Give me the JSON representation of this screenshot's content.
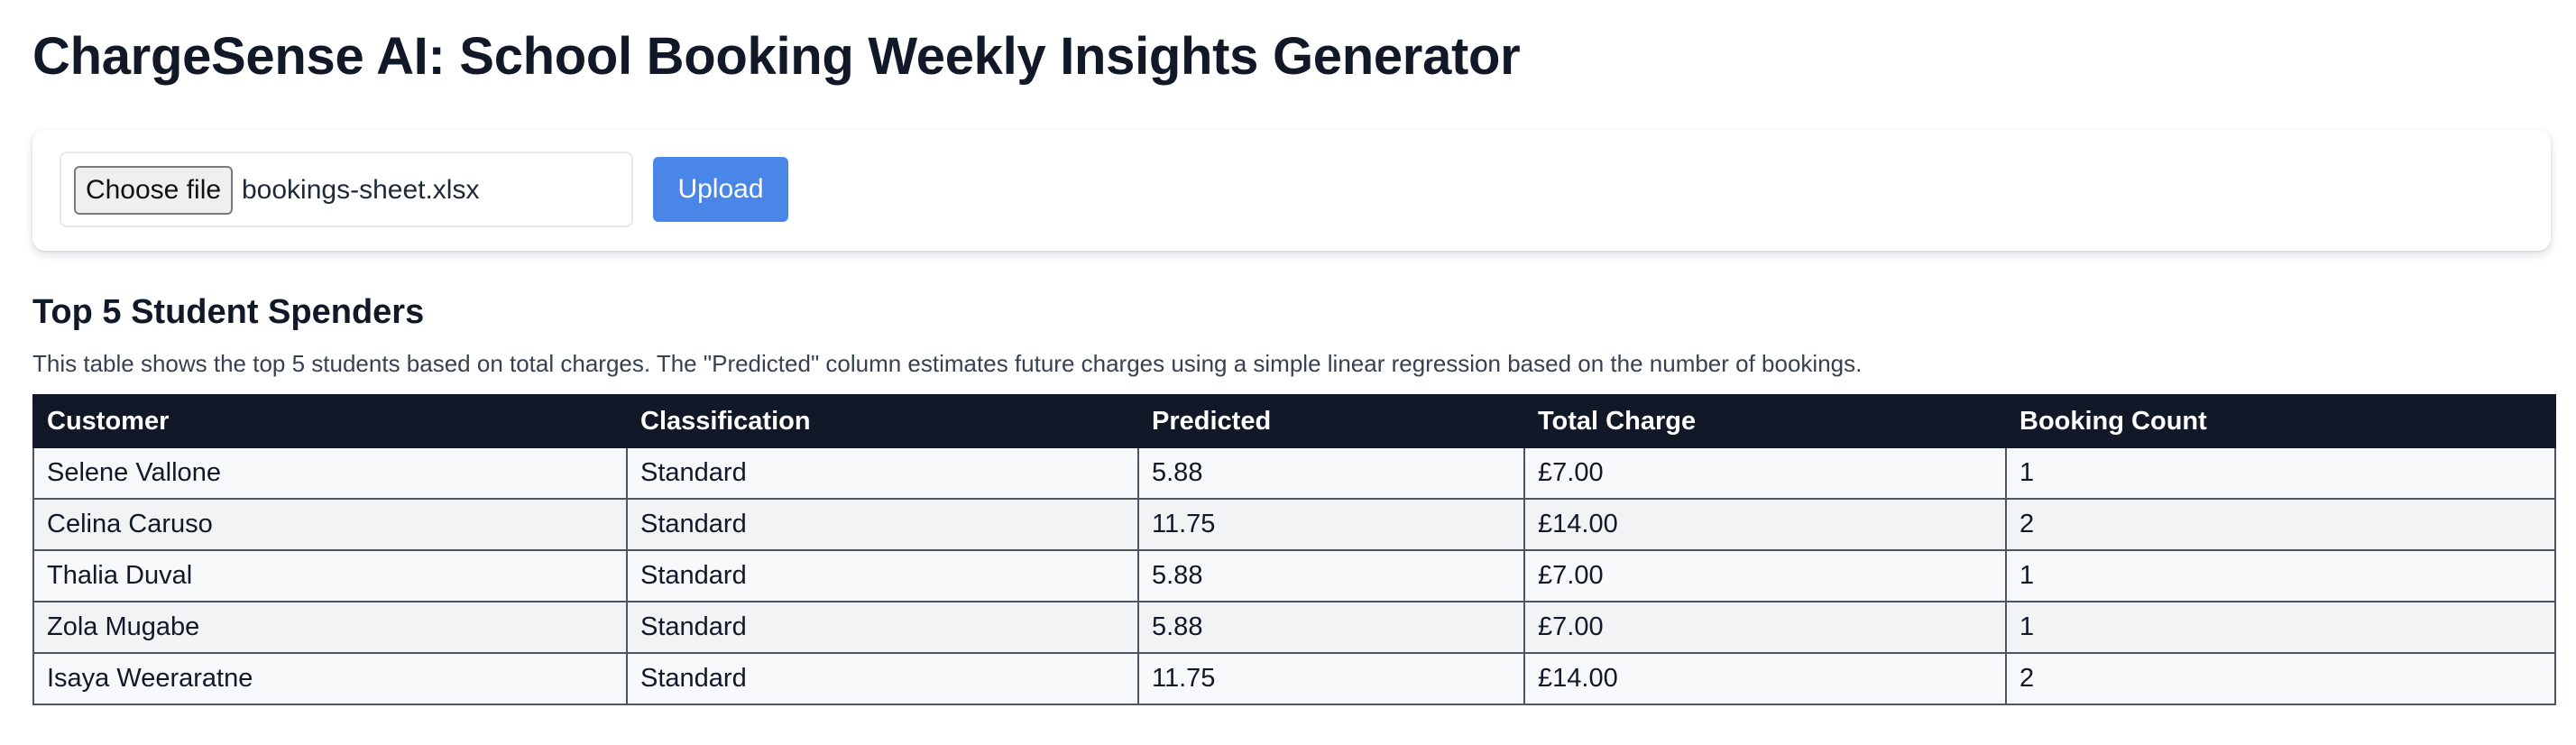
{
  "page_title": "ChargeSense AI: School Booking Weekly Insights Generator",
  "upload": {
    "choose_file_label": "Choose file",
    "file_name": "bookings-sheet.xlsx",
    "upload_label": "Upload",
    "accent_color": "#4a86e8"
  },
  "section": {
    "title": "Top 5 Student Spenders",
    "description": "This table shows the top 5 students based on total charges. The \"Predicted\" column estimates future charges using a simple linear regression based on the number of bookings."
  },
  "table": {
    "columns": [
      "Customer",
      "Classification",
      "Predicted",
      "Total Charge",
      "Booking Count"
    ],
    "rows": [
      [
        "Selene Vallone",
        "Standard",
        "5.88",
        "£7.00",
        "1"
      ],
      [
        "Celina Caruso",
        "Standard",
        "11.75",
        "£14.00",
        "2"
      ],
      [
        "Thalia Duval",
        "Standard",
        "5.88",
        "£7.00",
        "1"
      ],
      [
        "Zola Mugabe",
        "Standard",
        "5.88",
        "£7.00",
        "1"
      ],
      [
        "Isaya Weeraratne",
        "Standard",
        "11.75",
        "£14.00",
        "2"
      ]
    ]
  }
}
